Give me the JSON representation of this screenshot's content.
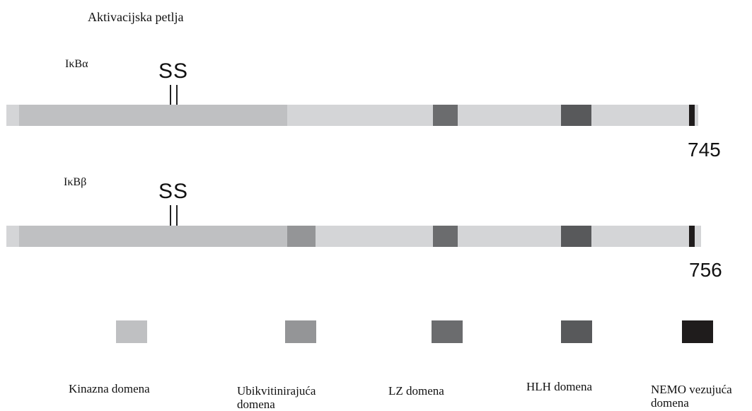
{
  "title": "Aktivacijska petlja",
  "colors": {
    "background_bar": "#d4d5d7",
    "kinase": "#bfc0c2",
    "ubiquitin": "#949597",
    "lz": "#6b6c6e",
    "hlh": "#58595b",
    "nemo": "#1f1c1c"
  },
  "proteins": [
    {
      "name": "IκBα",
      "ss": "SS",
      "length": "745"
    },
    {
      "name": "IκBβ",
      "ss": "SS",
      "length": "756"
    }
  ],
  "legend": [
    {
      "label": "Kinazna domena"
    },
    {
      "label": "Ubikvitinirajuća domena"
    },
    {
      "label": "LZ domena"
    },
    {
      "label": "HLH domena"
    },
    {
      "label": "NEMO vezujuća domena"
    }
  ]
}
